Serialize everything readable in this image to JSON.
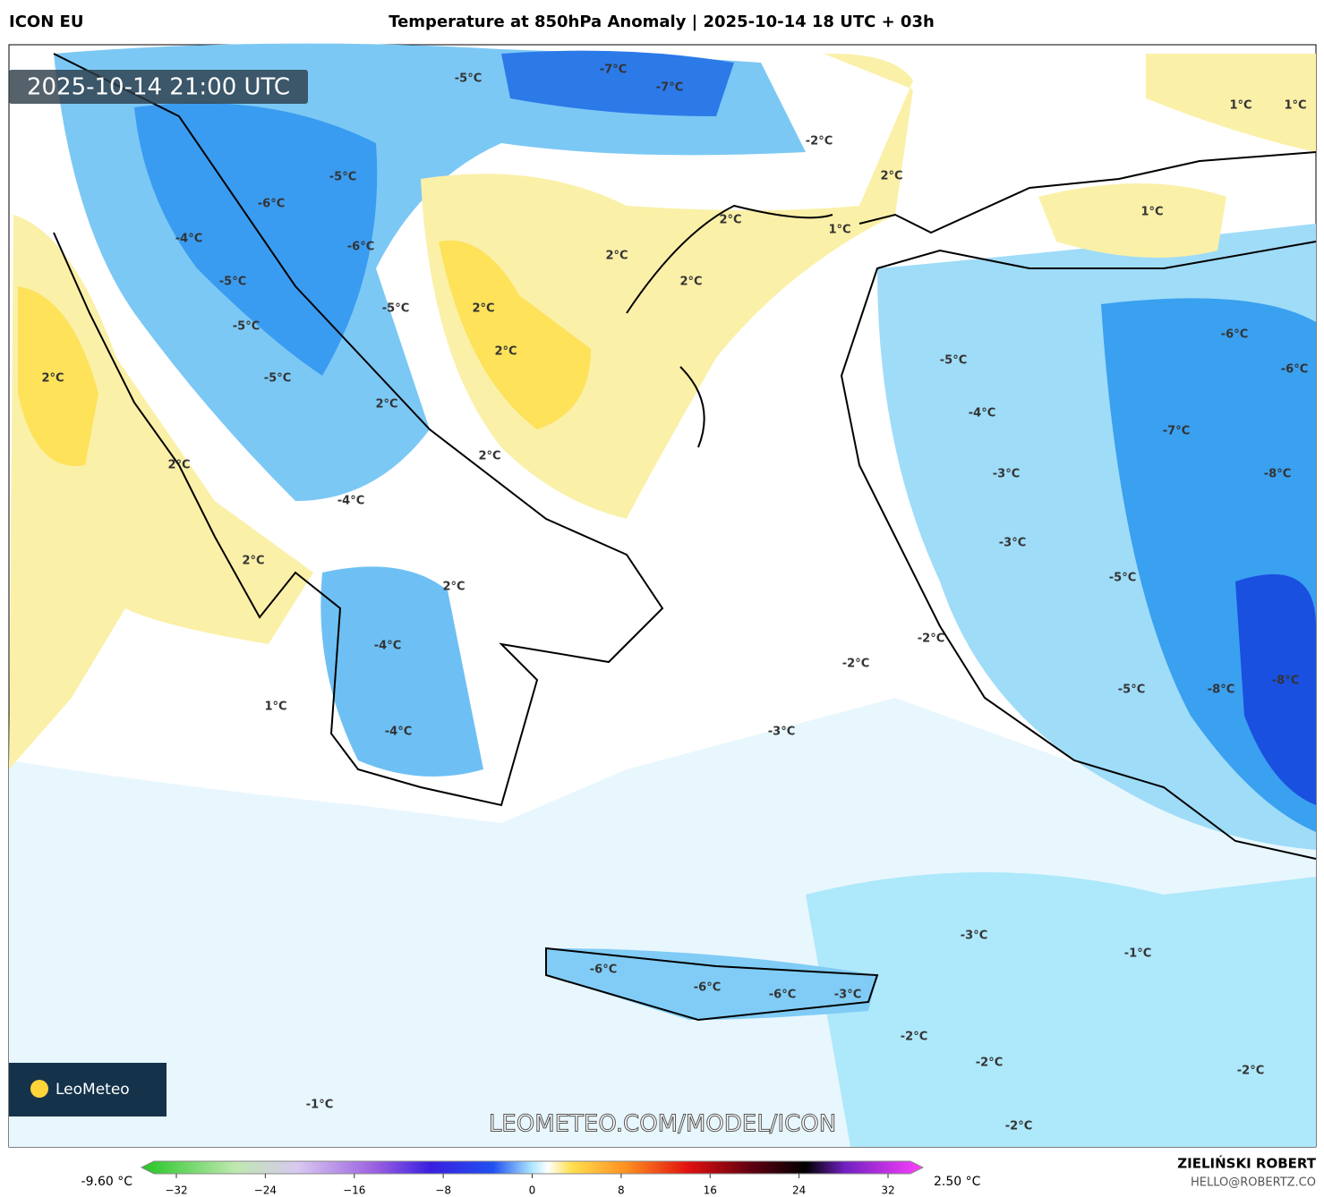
{
  "header": {
    "model": "ICON EU",
    "title": "Temperature at 850hPa Anomaly | 2025-10-14 18 UTC + 03h"
  },
  "map": {
    "timestamp": "2025-10-14 21:00 UTC",
    "watermark": "LEOMETEO.COM/MODEL/ICON",
    "logo": "LeoMeteo",
    "labels": [
      "-7°C",
      "-7°C",
      "-5°C",
      "-2°C",
      "2°C",
      "1°C",
      "1°C",
      "-5°C",
      "-6°C",
      "-4°C",
      "-6°C",
      "2°C",
      "1°C",
      "1°C",
      "2°C",
      "2°C",
      "-5°C",
      "2°C",
      "-5°C",
      "-5°C",
      "-6°C",
      "2°C",
      "-5°C",
      "-6°C",
      "2°C",
      "-5°C",
      "2°C",
      "-4°C",
      "-7°C",
      "2°C",
      "2°C",
      "-3°C",
      "-8°C",
      "-4°C",
      "-3°C",
      "2°C",
      "-5°C",
      "2°C",
      "-2°C",
      "-4°C",
      "-2°C",
      "-5°C",
      "-8°C",
      "-8°C",
      "1°C",
      "-4°C",
      "-3°C",
      "-3°C",
      "-1°C",
      "-6°C",
      "-6°C",
      "-6°C",
      "-3°C",
      "-2°C",
      "-2°C",
      "-2°C",
      "-1°C",
      "-2°C"
    ]
  },
  "colorbar": {
    "min_label": "-9.60 °C",
    "max_label": "2.50 °C",
    "ticks": [
      "−32",
      "−24",
      "−16",
      "−8",
      "0",
      "8",
      "16",
      "24",
      "32"
    ]
  },
  "credits": {
    "author": "ZIELIŃSKI ROBERT",
    "email": "HELLO@ROBERTZ.CO"
  }
}
